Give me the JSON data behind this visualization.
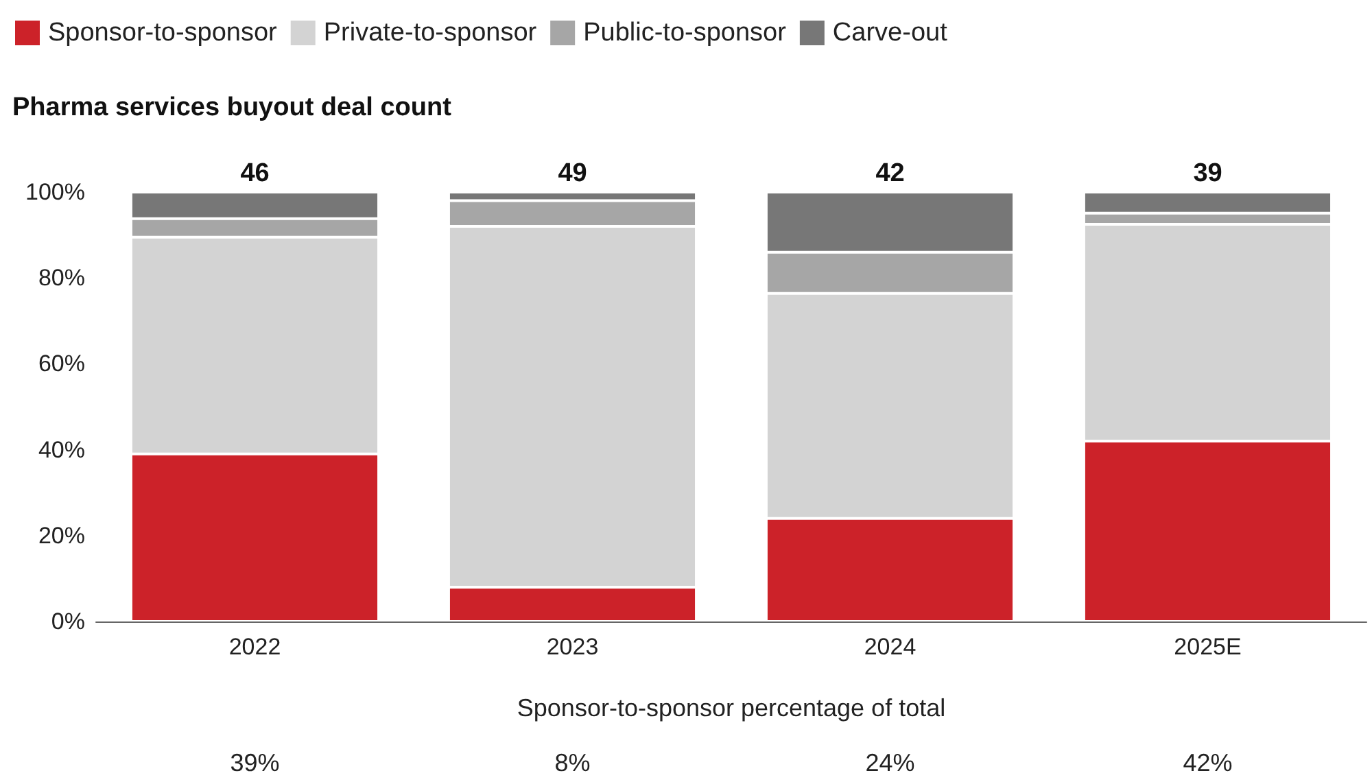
{
  "chart_data": {
    "type": "bar",
    "title": "Pharma services buyout deal count",
    "stacked": true,
    "categories": [
      "2022",
      "2023",
      "2024",
      "2025E"
    ],
    "series": [
      {
        "name": "Sponsor-to-sponsor",
        "color": "#cc2229",
        "values": [
          39,
          8,
          24,
          42
        ]
      },
      {
        "name": "Private-to-sponsor",
        "color": "#d3d3d3",
        "values": [
          50.5,
          84,
          52.4,
          50.5
        ]
      },
      {
        "name": "Public-to-sponsor",
        "color": "#a6a6a6",
        "values": [
          4.3,
          6,
          9.6,
          2.6
        ]
      },
      {
        "name": "Carve-out",
        "color": "#777777",
        "values": [
          6.2,
          2,
          14,
          4.9
        ]
      }
    ],
    "ylim": [
      0,
      100
    ],
    "yticks": [
      {
        "value": 0,
        "label": "0%"
      },
      {
        "value": 20,
        "label": "20%"
      },
      {
        "value": 40,
        "label": "40%"
      },
      {
        "value": 60,
        "label": "60%"
      },
      {
        "value": 80,
        "label": "80%"
      },
      {
        "value": 100,
        "label": "100%"
      }
    ],
    "grid": false,
    "legend": "top left",
    "annotations": [
      {
        "text": "46",
        "x": "2022",
        "y": 100
      },
      {
        "text": "49",
        "x": "2023",
        "y": 100
      },
      {
        "text": "42",
        "x": "2024",
        "y": 100
      },
      {
        "text": "39",
        "x": "2025E",
        "y": 100
      },
      "Sponsor-to-sponsor percentage of total",
      "39%",
      "8%",
      "24%",
      "42%"
    ]
  }
}
